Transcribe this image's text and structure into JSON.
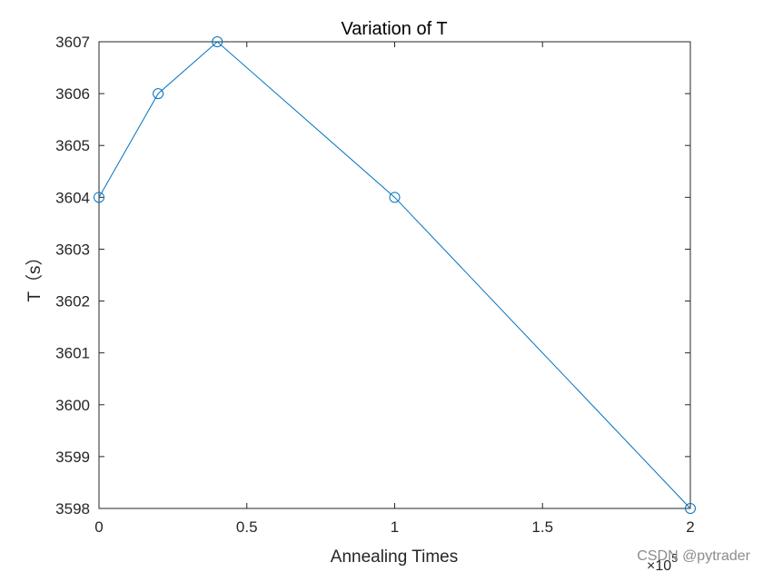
{
  "chart_data": {
    "type": "line",
    "title": "Variation of T",
    "xlabel": "Annealing Times",
    "ylabel": "T（s）",
    "x_exponent_label": "×10",
    "x_exponent_power": "5",
    "x": [
      0,
      0.2,
      0.4,
      1,
      2
    ],
    "y": [
      3604,
      3606,
      3607,
      3604,
      3598
    ],
    "xlim": [
      0,
      2
    ],
    "ylim": [
      3598,
      3607
    ],
    "xticks": [
      0,
      0.5,
      1,
      1.5,
      2
    ],
    "xtick_labels": [
      "0",
      "0.5",
      "1",
      "1.5",
      "2"
    ],
    "yticks": [
      3598,
      3599,
      3600,
      3601,
      3602,
      3603,
      3604,
      3605,
      3606,
      3607
    ],
    "ytick_labels": [
      "3598",
      "3599",
      "3600",
      "3601",
      "3602",
      "3603",
      "3604",
      "3605",
      "3606",
      "3607"
    ],
    "marker": "circle",
    "line_color": "#0072BD",
    "grid": false,
    "legend": "none"
  },
  "watermark": "CSDN @pytrader"
}
